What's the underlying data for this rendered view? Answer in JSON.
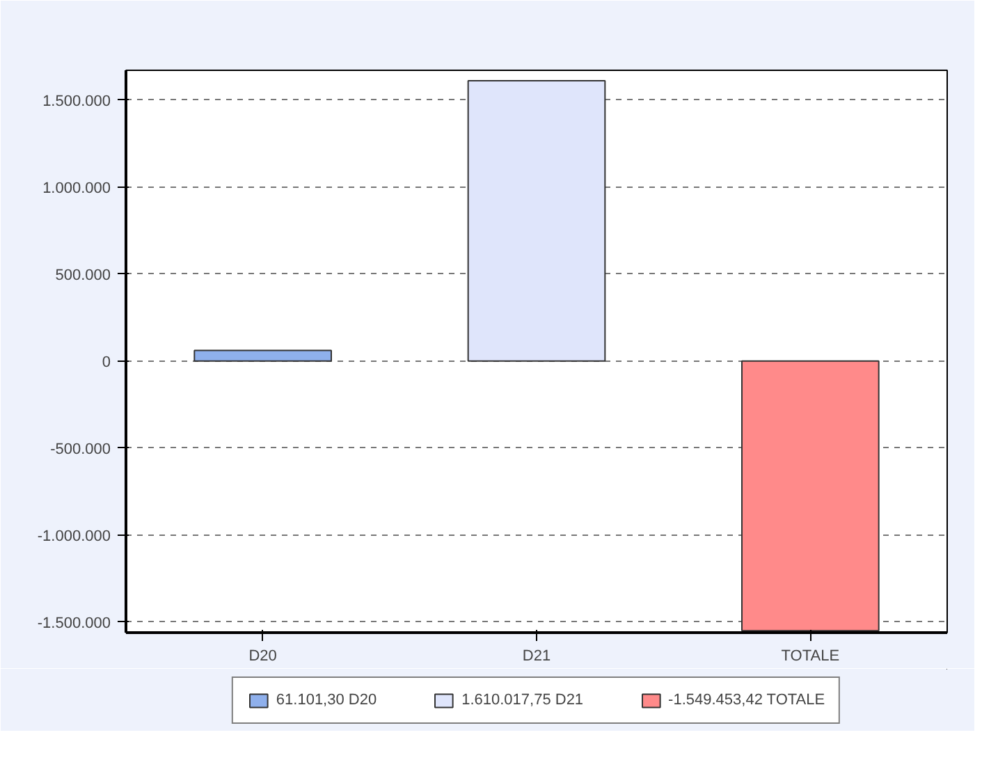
{
  "chart_data": {
    "type": "bar",
    "categories": [
      "D20",
      "D21",
      "TOTALE"
    ],
    "series": [
      {
        "name": "61.101,30 D20",
        "color": "#8fb0ec",
        "values": [
          61101.3,
          null,
          null
        ]
      },
      {
        "name": "1.610.017,75 D21",
        "color": "#dfe5fb",
        "values": [
          null,
          1610017.75,
          null
        ]
      },
      {
        "name": "-1.549.453,42 TOTALE",
        "color": "#ff8a8a",
        "values": [
          null,
          null,
          -1549453.42
        ]
      }
    ],
    "ylim": [
      -1560000,
      1670000
    ],
    "yticks": [
      {
        "value": -1500000,
        "label": "-1.500.000"
      },
      {
        "value": -1000000,
        "label": "-1.000.000"
      },
      {
        "value": -500000,
        "label": "-500.000"
      },
      0,
      {
        "value": 500000,
        "label": "500.000"
      },
      {
        "value": 1000000,
        "label": "1.000.000"
      },
      {
        "value": 1500000,
        "label": "1.500.000"
      }
    ],
    "grid": "y",
    "legend": "bottom"
  }
}
